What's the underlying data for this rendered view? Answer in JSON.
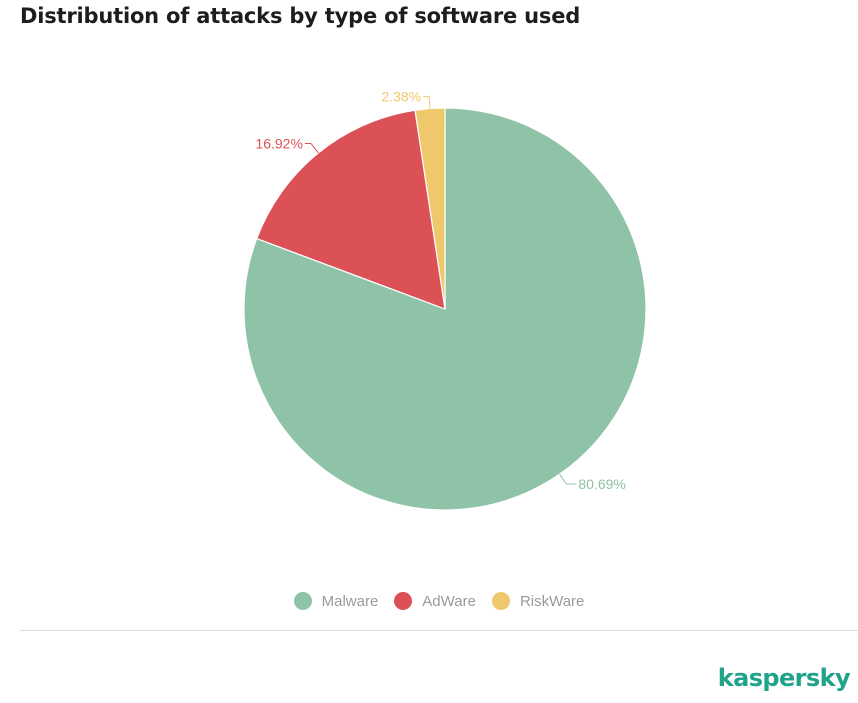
{
  "page": {
    "title": "Distribution of attacks by type of software used",
    "brand": "kaspersky"
  },
  "chart_data": {
    "type": "pie",
    "title": "Distribution of attacks by type of software used",
    "legend": "bottom",
    "slices": [
      {
        "name": "Malware",
        "value": 80.69,
        "label": "80.69%",
        "color": "#8fc3a8"
      },
      {
        "name": "AdWare",
        "value": 16.92,
        "label": "16.92%",
        "color": "#dc5155"
      },
      {
        "name": "RiskWare",
        "value": 2.38,
        "label": "2.38%",
        "color": "#f0c86c"
      }
    ]
  }
}
